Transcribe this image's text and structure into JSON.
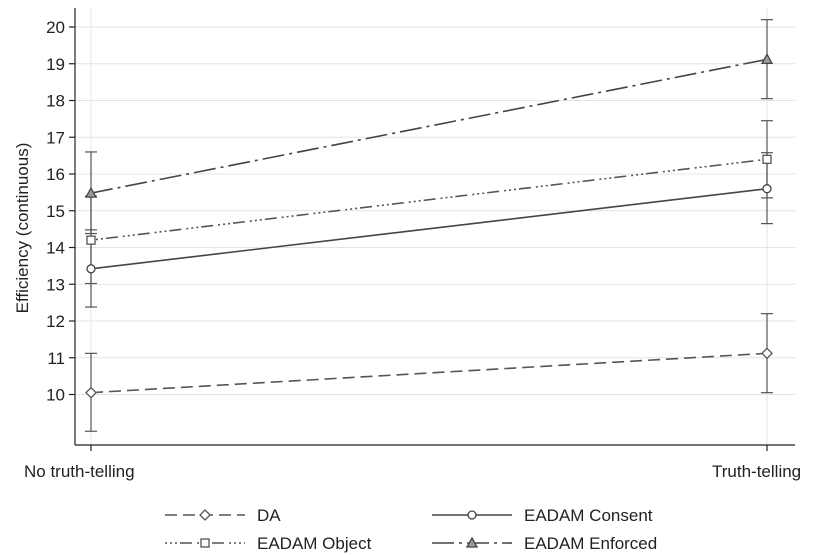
{
  "chart_data": {
    "type": "line",
    "title": "",
    "xlabel": "",
    "ylabel": "Efficiency (continuous)",
    "categories": [
      "No truth-telling",
      "Truth-telling"
    ],
    "ylim": [
      9,
      20.5
    ],
    "yticks": [
      10,
      11,
      12,
      13,
      14,
      15,
      16,
      17,
      18,
      19,
      20
    ],
    "grid": true,
    "legend_position": "bottom",
    "series": [
      {
        "name": "DA",
        "values": [
          10.05,
          11.12
        ],
        "ci": [
          [
            9.0,
            11.12
          ],
          [
            10.05,
            12.2
          ]
        ],
        "marker": "diamond",
        "dash": "long-dash",
        "color": "#555555"
      },
      {
        "name": "EADAM Consent",
        "values": [
          13.42,
          15.6
        ],
        "ci": [
          [
            12.38,
            14.48
          ],
          [
            14.65,
            16.58
          ]
        ],
        "marker": "circle",
        "dash": "solid",
        "color": "#444444"
      },
      {
        "name": "EADAM Object",
        "values": [
          14.2,
          16.4
        ],
        "ci": [
          [
            13.02,
            15.4
          ],
          [
            15.35,
            17.45
          ]
        ],
        "marker": "square",
        "dash": "dot-dash",
        "color": "#555555"
      },
      {
        "name": "EADAM Enforced",
        "values": [
          15.48,
          19.12
        ],
        "ci": [
          [
            14.38,
            16.6
          ],
          [
            18.05,
            20.2
          ]
        ],
        "marker": "triangle",
        "dash": "long-dash-dot",
        "color": "#444444"
      }
    ]
  }
}
